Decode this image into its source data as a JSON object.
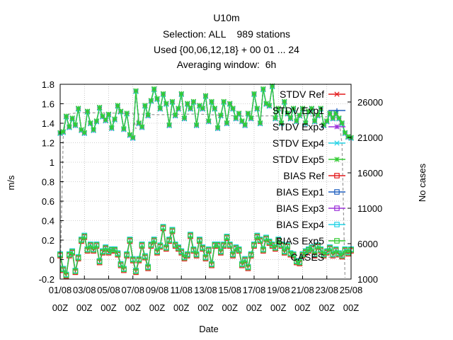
{
  "chart_data": {
    "type": "line",
    "title_lines": [
      "U10m",
      "Selection: ALL    989 stations",
      "Used {00,06,12,18} + 00 01 ... 24",
      "Averaging window:  6h"
    ],
    "xlabel": "Date",
    "ylabel": "m/s",
    "y2label": "No cases",
    "ylim": [
      -0.2,
      1.8
    ],
    "y2lim": [
      1000,
      28500
    ],
    "yticks": [
      "-0.2",
      "0",
      "0.2",
      "0.4",
      "0.6",
      "0.8",
      "1",
      "1.2",
      "1.4",
      "1.6",
      "1.8"
    ],
    "y2ticks": [
      "1000",
      "6000",
      "11000",
      "16000",
      "21000",
      "26000"
    ],
    "xtick_dates": [
      "01/08",
      "03/08",
      "05/08",
      "07/08",
      "09/08",
      "11/08",
      "13/08",
      "15/08",
      "17/08",
      "19/08",
      "21/08",
      "23/08",
      "25/08"
    ],
    "xtick_times": [
      "00Z",
      "00Z",
      "00Z",
      "00Z",
      "00Z",
      "00Z",
      "00Z",
      "00Z",
      "00Z",
      "00Z",
      "00Z",
      "00Z",
      "00Z"
    ],
    "x_index_range": [
      0,
      96
    ],
    "grid": true,
    "legend_position": "top-right, inside",
    "stdv": [
      1.3,
      1.31,
      1.47,
      1.36,
      1.45,
      1.38,
      1.55,
      1.33,
      1.3,
      1.52,
      1.4,
      1.33,
      1.42,
      1.56,
      1.47,
      1.43,
      1.49,
      1.35,
      1.44,
      1.58,
      1.52,
      1.34,
      1.5,
      1.28,
      1.25,
      1.73,
      1.4,
      1.36,
      1.58,
      1.48,
      1.63,
      1.75,
      1.65,
      1.55,
      1.7,
      1.6,
      1.38,
      1.62,
      1.48,
      1.55,
      1.7,
      1.45,
      1.6,
      1.55,
      1.62,
      1.38,
      1.58,
      1.55,
      1.68,
      1.42,
      1.62,
      1.55,
      1.35,
      1.48,
      1.62,
      1.4,
      1.6,
      1.55,
      1.45,
      1.5,
      1.42,
      1.38,
      1.5,
      1.45,
      1.7,
      1.55,
      1.4,
      1.75,
      1.6,
      1.58,
      1.78,
      1.45,
      1.55,
      1.4,
      1.62,
      1.5,
      1.45,
      1.55,
      1.42,
      1.48,
      1.55,
      1.4,
      1.52,
      1.55,
      1.42,
      1.48,
      1.55,
      1.38,
      1.42,
      1.5,
      1.45,
      1.5,
      1.45,
      1.4,
      1.3,
      1.26,
      1.25
    ],
    "bias": [
      0.05,
      -0.1,
      -0.16,
      0.05,
      0.08,
      -0.12,
      0.02,
      0.2,
      0.24,
      0.1,
      0.15,
      0.1,
      0.15,
      -0.02,
      0.08,
      0.12,
      0.08,
      0.1,
      0.1,
      0.06,
      -0.05,
      -0.1,
      0.05,
      0.2,
      0.0,
      -0.12,
      0.0,
      0.15,
      0.03,
      -0.08,
      0.15,
      0.2,
      0.08,
      0.14,
      0.33,
      0.12,
      0.2,
      0.3,
      0.15,
      0.12,
      0.08,
      0.02,
      0.05,
      0.25,
      0.1,
      0.05,
      0.2,
      0.12,
      0.02,
      0.1,
      -0.05,
      0.15,
      0.15,
      0.08,
      0.15,
      0.23,
      0.15,
      0.05,
      0.12,
      0.1,
      -0.05,
      0.0,
      -0.08,
      0.05,
      0.15,
      0.24,
      0.2,
      0.1,
      0.22,
      0.18,
      0.15,
      0.12,
      0.2,
      0.15,
      0.08,
      0.14,
      0.06,
      0.05,
      -0.02,
      -0.03,
      0.05,
      0.08,
      0.1,
      0.12,
      0.05,
      0.14,
      0.1,
      0.05,
      0.08,
      0.12,
      0.05,
      0.1,
      0.06,
      0.04,
      0.1,
      0.07,
      0.1
    ],
    "series": [
      {
        "name": "STDV Ref",
        "kind": "stdv",
        "offset": 0.0,
        "color": "#e41a1c",
        "marker": "x"
      },
      {
        "name": "STDV Exp1",
        "kind": "stdv",
        "offset": 0.003,
        "color": "#1f5fbf",
        "marker": "plus"
      },
      {
        "name": "STDV Exp3",
        "kind": "stdv",
        "offset": -0.004,
        "color": "#9b30d9",
        "marker": "star"
      },
      {
        "name": "STDV Exp4",
        "kind": "stdv",
        "offset": -0.006,
        "color": "#22d3e6",
        "marker": "x"
      },
      {
        "name": "STDV Exp5",
        "kind": "stdv",
        "offset": 0.004,
        "color": "#33cc33",
        "marker": "star"
      },
      {
        "name": "BIAS Ref",
        "kind": "bias",
        "offset": -0.01,
        "color": "#e41a1c",
        "marker": "square"
      },
      {
        "name": "BIAS Exp1",
        "kind": "bias",
        "offset": 0.006,
        "color": "#1f5fbf",
        "marker": "square"
      },
      {
        "name": "BIAS Exp3",
        "kind": "bias",
        "offset": 0.002,
        "color": "#9b30d9",
        "marker": "square"
      },
      {
        "name": "BIAS Exp4",
        "kind": "bias",
        "offset": 0.008,
        "color": "#22d3e6",
        "marker": "square"
      },
      {
        "name": "BIAS Exp5",
        "kind": "bias",
        "offset": 0.0,
        "color": "#33cc33",
        "marker": "square"
      }
    ],
    "cases": {
      "name": "CASES",
      "color": "#999999",
      "x": [
        0,
        1,
        2,
        3,
        6,
        24,
        25,
        26,
        32,
        45,
        60,
        80,
        92,
        93,
        94
      ],
      "values": [
        1200,
        21000,
        23800,
        24300,
        24500,
        24400,
        22200,
        24300,
        24200,
        24300,
        24000,
        24100,
        23800,
        20000,
        1200
      ]
    }
  }
}
